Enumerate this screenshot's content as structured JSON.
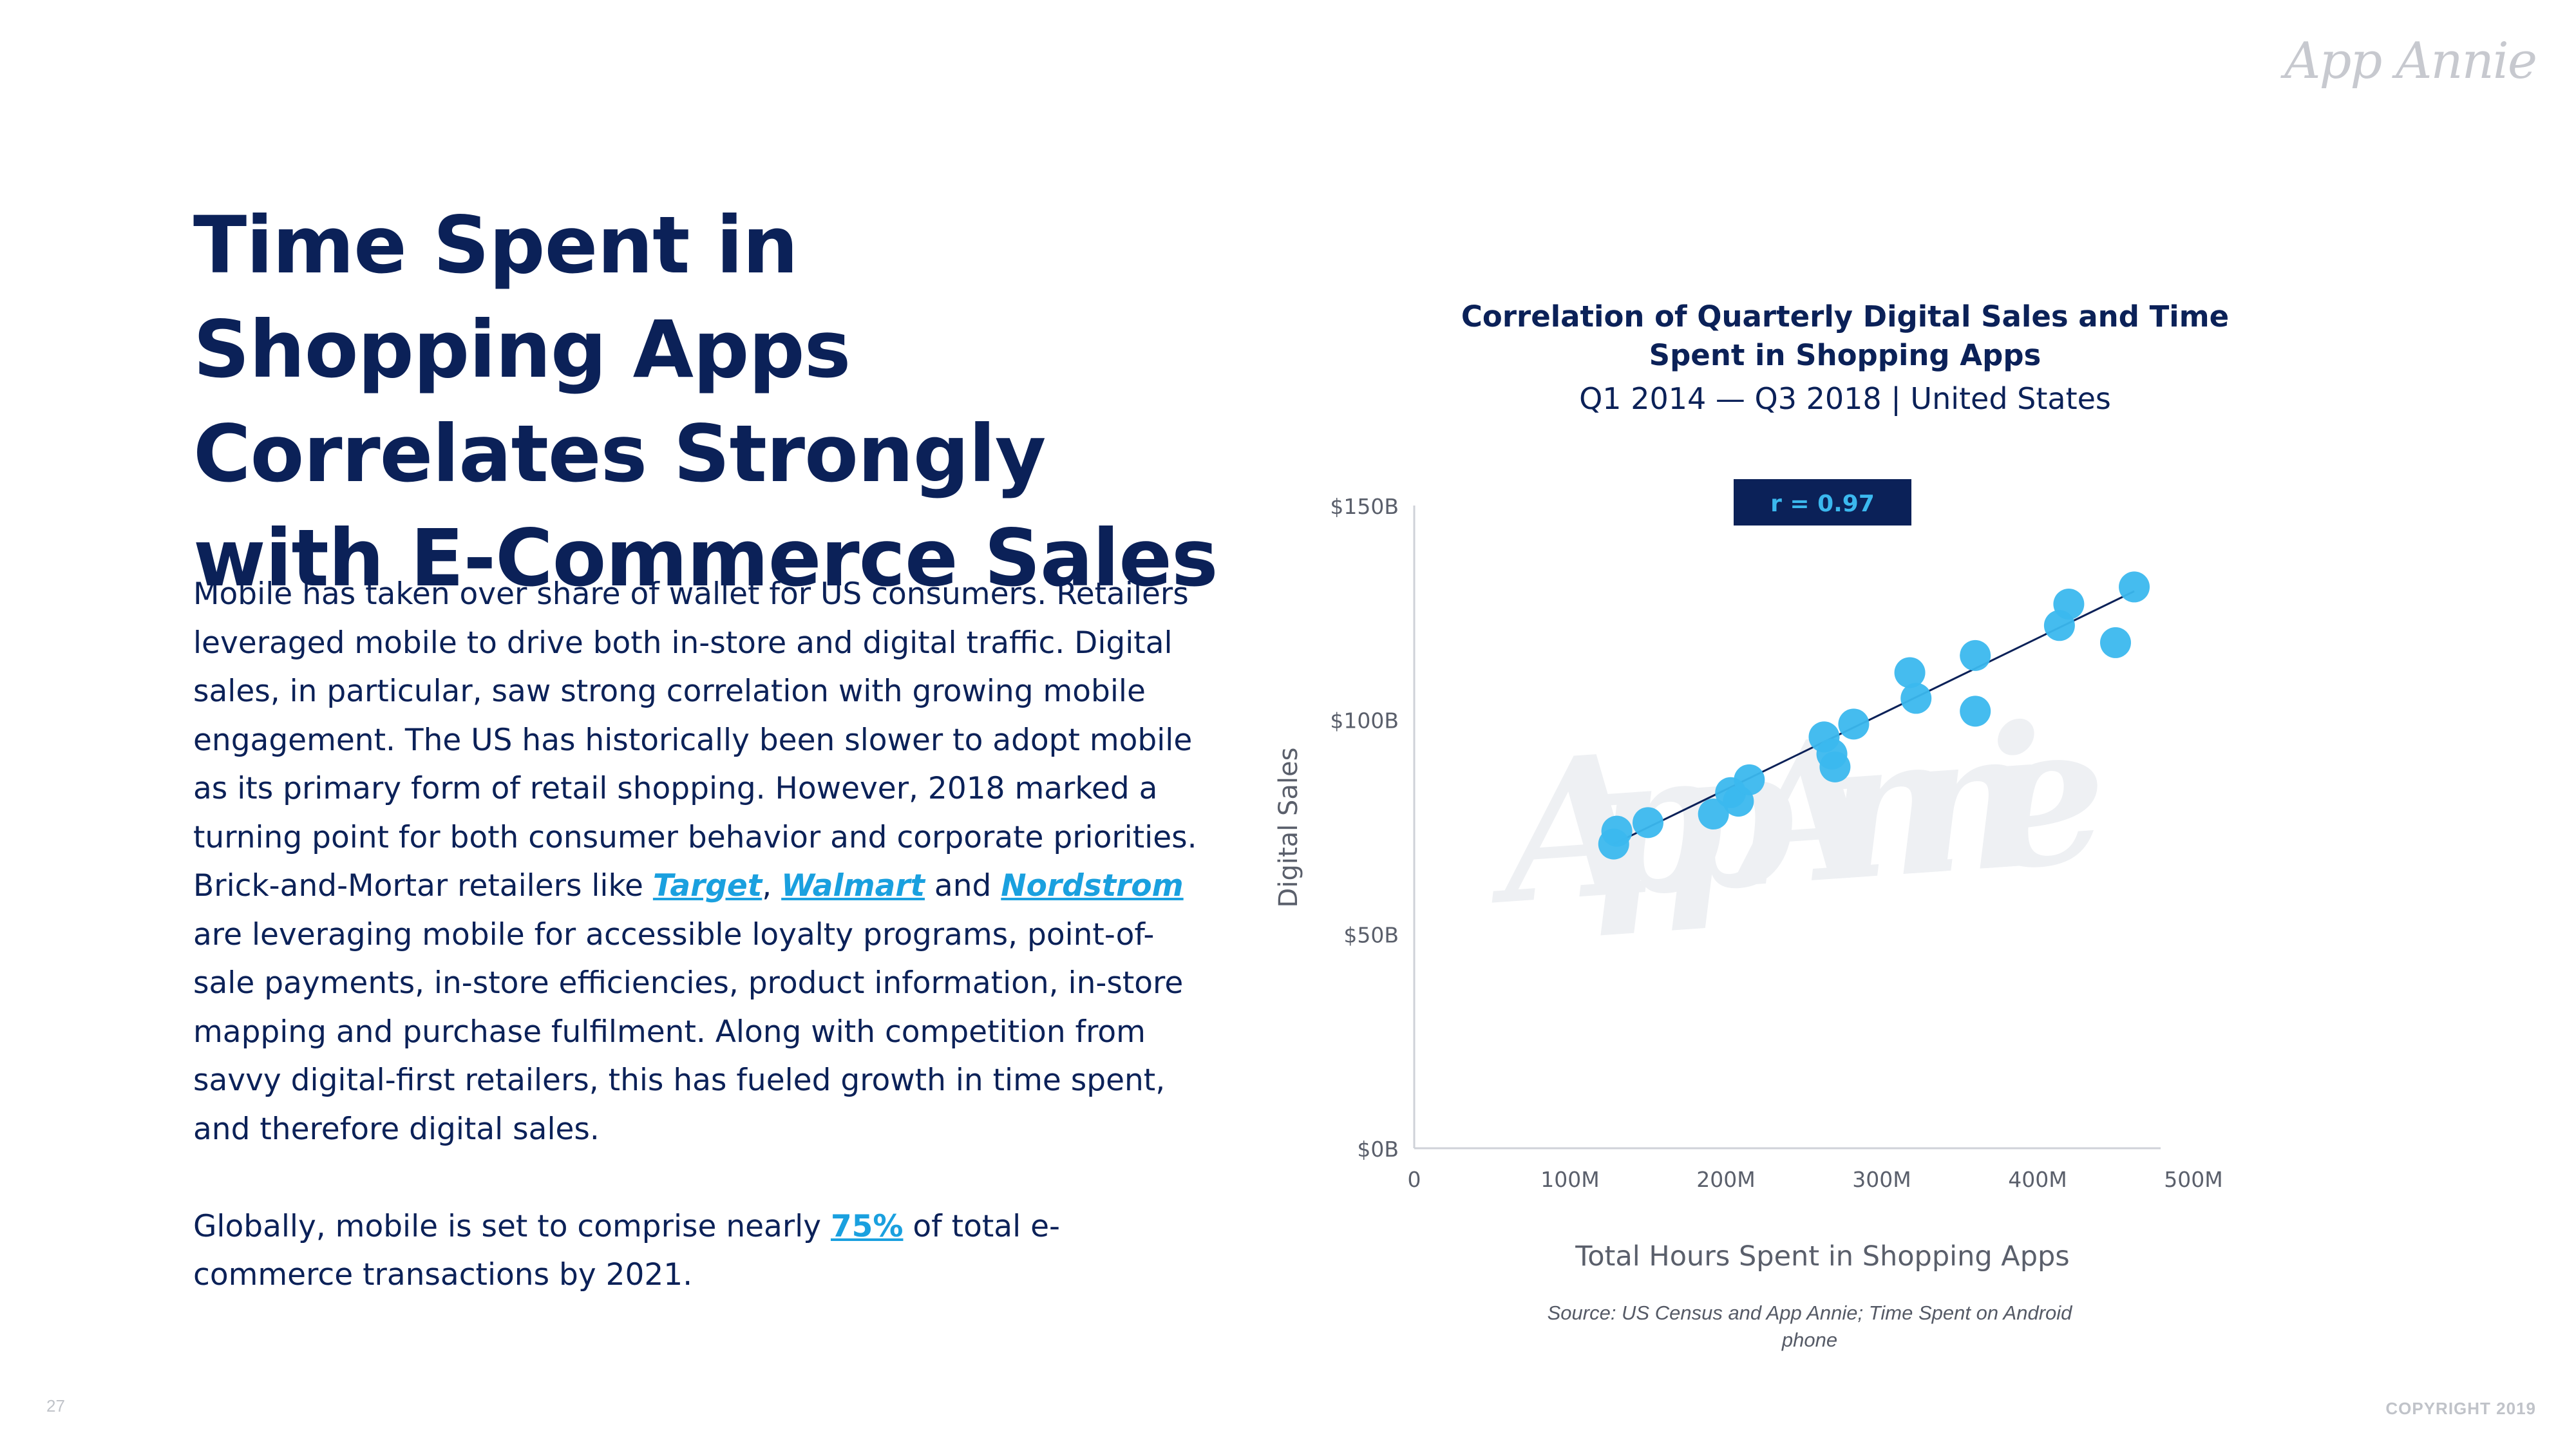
{
  "brand": {
    "logo_text": "App Annie",
    "watermark_text": "App Annie"
  },
  "slide": {
    "title": "Time Spent in Shopping Apps Correlates Strongly with E-Commerce Sales",
    "para1_a": "Mobile has taken over share of wallet for US consumers. Retailers leveraged mobile to drive both in-store and digital traffic. Digital sales, in particular, saw strong correlation with growing mobile engagement. The US has historically been slower to adopt mobile as its primary form of retail shopping. However, 2018 marked a turning point for both consumer behavior and corporate priorities. Brick-and-Mortar retailers like ",
    "link_target": "Target",
    "sep_comma": ", ",
    "link_walmart": "Walmart",
    "sep_and": " and ",
    "link_nordstrom": "Nordstrom",
    "para1_b": " are leveraging mobile for accessible loyalty programs, point-of-sale payments, in-store efficiencies, product information, in-store mapping and purchase fulfilment. Along with competition from savvy digital-first retailers, this has fueled growth in time spent, and therefore digital sales.",
    "para2_a": "Globally, mobile is set to comprise nearly ",
    "link_75": "75%",
    "para2_b": " of total e-commerce transactions by 2021.",
    "page_number": "27",
    "copyright": "COPYRIGHT 2019"
  },
  "chart_data": {
    "type": "scatter",
    "title": "Correlation of Quarterly Digital Sales and Time Spent in Shopping Apps",
    "subtitle": "Q1 2014 — Q3 2018 | United States",
    "xlabel": "Total Hours Spent in Shopping Apps",
    "ylabel": "Digital Sales",
    "annotation": "r = 0.97",
    "source": "Source: US Census and App Annie; Time Spent on Android phone",
    "xlim": [
      0,
      500000000
    ],
    "ylim": [
      0,
      150
    ],
    "x_ticks": [
      "0",
      "100M",
      "200M",
      "300M",
      "400M",
      "500M"
    ],
    "y_ticks": [
      "$0B",
      "$50B",
      "$100B",
      "$150B"
    ],
    "x_tick_values": [
      0,
      100000000,
      200000000,
      300000000,
      400000000,
      500000000
    ],
    "y_tick_values": [
      0,
      50,
      100,
      150
    ],
    "grid": false,
    "point_color": "#3bb8ee",
    "trend_color": "#0b2158",
    "points": [
      {
        "x": 128000000,
        "y": 71
      },
      {
        "x": 130000000,
        "y": 74
      },
      {
        "x": 150000000,
        "y": 76
      },
      {
        "x": 192000000,
        "y": 78
      },
      {
        "x": 203000000,
        "y": 83
      },
      {
        "x": 208000000,
        "y": 81
      },
      {
        "x": 215000000,
        "y": 86
      },
      {
        "x": 263000000,
        "y": 96
      },
      {
        "x": 268000000,
        "y": 92
      },
      {
        "x": 270000000,
        "y": 89
      },
      {
        "x": 282000000,
        "y": 99
      },
      {
        "x": 318000000,
        "y": 111
      },
      {
        "x": 322000000,
        "y": 105
      },
      {
        "x": 360000000,
        "y": 102
      },
      {
        "x": 360000000,
        "y": 115
      },
      {
        "x": 414000000,
        "y": 122
      },
      {
        "x": 420000000,
        "y": 127
      },
      {
        "x": 450000000,
        "y": 118
      },
      {
        "x": 462000000,
        "y": 131
      }
    ],
    "trend": {
      "x": [
        128000000,
        462000000
      ],
      "y": [
        71,
        130
      ]
    }
  }
}
